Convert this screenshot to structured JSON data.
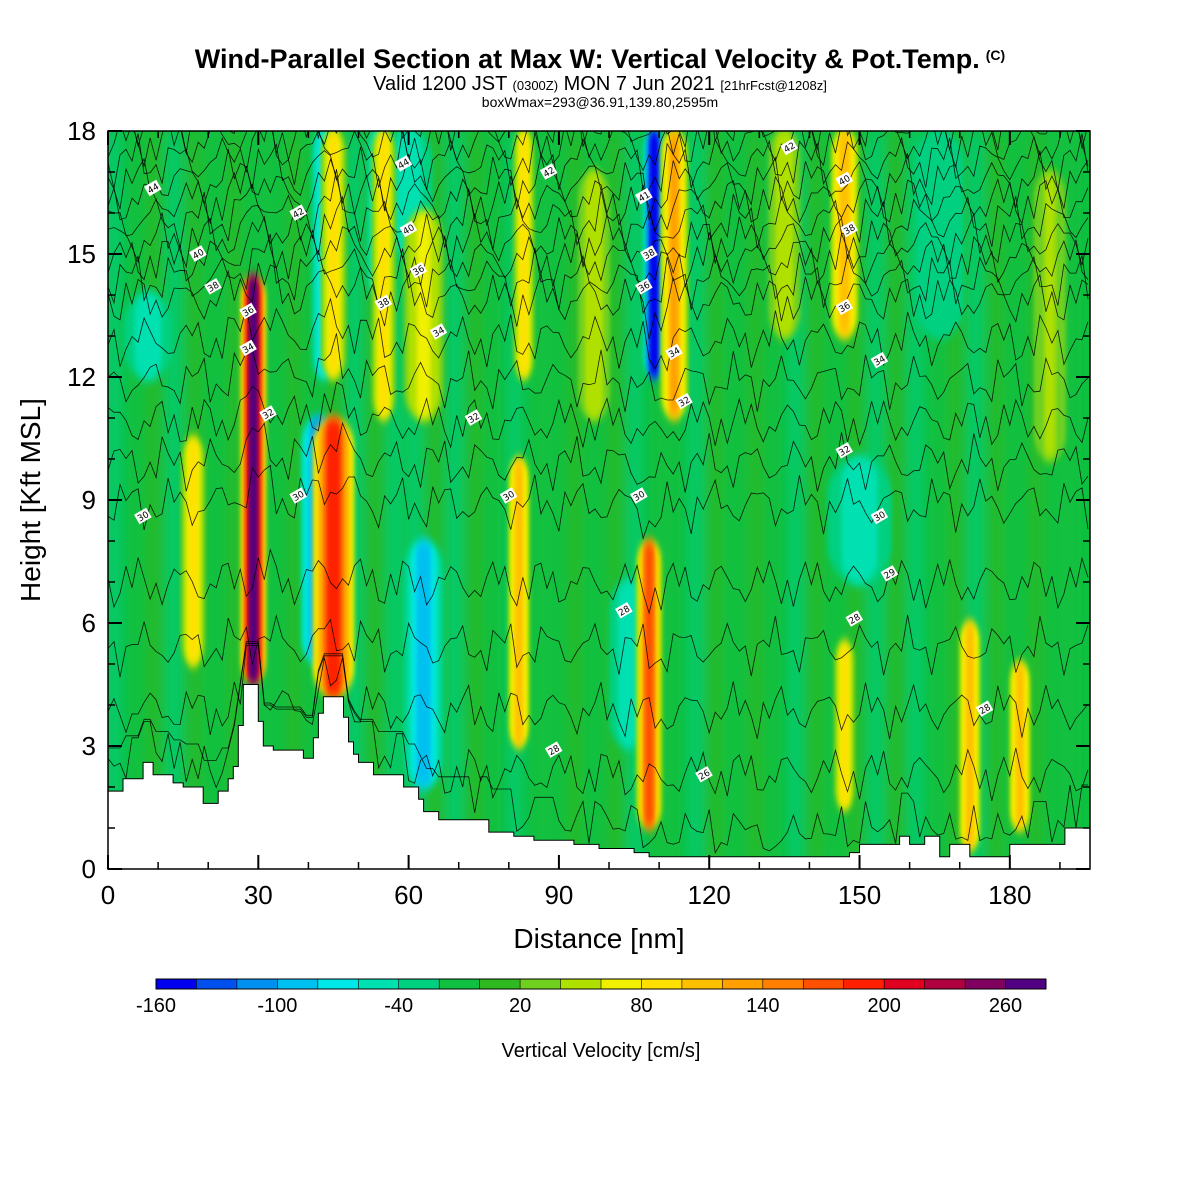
{
  "title": {
    "main": "Wind-Parallel Section at Max W: Vertical Velocity & Pot.Temp.",
    "copyright": "(C)",
    "valid_prefix": "Valid 1200 JST",
    "valid_utc": "(0300Z)",
    "valid_date": "MON 7 Jun 2021",
    "forecast": "[21hrFcst@1208z]",
    "box_info": "boxWmax=293@36.91,139.80,2595m"
  },
  "chart_data": {
    "type": "heatmap",
    "xlabel": "Distance [nm]",
    "ylabel": "Height [Kft MSL]",
    "xlim": [
      0,
      196
    ],
    "ylim": [
      0,
      18
    ],
    "x_ticks": [
      0,
      30,
      60,
      90,
      120,
      150,
      180
    ],
    "y_ticks": [
      0,
      3,
      6,
      9,
      12,
      15,
      18
    ],
    "colorbar": {
      "label": "Vertical Velocity [cm/s]",
      "min": -160,
      "max": 300,
      "step": 20,
      "tick_labels": [
        -160,
        -100,
        -40,
        20,
        80,
        140,
        200,
        260
      ],
      "colors": [
        "#0000ee",
        "#0050f0",
        "#0090f0",
        "#00c0f0",
        "#00e8e8",
        "#00e0b0",
        "#00d080",
        "#10c040",
        "#30b820",
        "#70d020",
        "#b0e000",
        "#f0f000",
        "#ffe000",
        "#ffc000",
        "#ffa000",
        "#ff8000",
        "#ff5000",
        "#ff2000",
        "#e00020",
        "#b00040",
        "#800060",
        "#500080"
      ]
    },
    "updrafts": [
      {
        "x": 17,
        "w": 1.5,
        "zmin": 5,
        "zmax": 10.5,
        "value": 90
      },
      {
        "x": 29,
        "w": 1.6,
        "zmin": 4.5,
        "zmax": 14.5,
        "value": 260
      },
      {
        "x": 45,
        "w": 2.6,
        "zmin": 4.2,
        "zmax": 11,
        "value": 180
      },
      {
        "x": 45,
        "w": 1.6,
        "zmin": 12,
        "zmax": 18,
        "value": 90
      },
      {
        "x": 55,
        "w": 1.5,
        "zmin": 11,
        "zmax": 18,
        "value": 80
      },
      {
        "x": 82,
        "w": 1.3,
        "zmin": 3,
        "zmax": 10,
        "value": 110
      },
      {
        "x": 83,
        "w": 1.3,
        "zmin": 12,
        "zmax": 18,
        "value": 90
      },
      {
        "x": 108,
        "w": 1.6,
        "zmin": 1,
        "zmax": 8,
        "value": 170
      },
      {
        "x": 113,
        "w": 1.7,
        "zmin": 11,
        "zmax": 18,
        "value": 120
      },
      {
        "x": 147,
        "w": 1.7,
        "zmin": 13,
        "zmax": 18,
        "value": 100
      },
      {
        "x": 147,
        "w": 1.3,
        "zmin": 1.5,
        "zmax": 5.5,
        "value": 80
      },
      {
        "x": 172,
        "w": 1.3,
        "zmin": 0.5,
        "zmax": 6,
        "value": 110
      },
      {
        "x": 182,
        "w": 1.3,
        "zmin": 1,
        "zmax": 5,
        "value": 100
      },
      {
        "x": 63,
        "w": 2.5,
        "zmin": 11,
        "zmax": 16,
        "value": 60
      },
      {
        "x": 97,
        "w": 2,
        "zmin": 11,
        "zmax": 17,
        "value": 50
      },
      {
        "x": 135,
        "w": 2,
        "zmin": 13,
        "zmax": 18,
        "value": 50
      },
      {
        "x": 188,
        "w": 2,
        "zmin": 10,
        "zmax": 17,
        "value": 40
      }
    ],
    "downdrafts": [
      {
        "x": 42,
        "w": 2.2,
        "zmin": 5,
        "zmax": 11,
        "value": -110
      },
      {
        "x": 43,
        "w": 1.5,
        "zmin": 12,
        "zmax": 18,
        "value": -80
      },
      {
        "x": 63,
        "w": 2.6,
        "zmin": 2,
        "zmax": 8,
        "value": -90
      },
      {
        "x": 54,
        "w": 1.5,
        "zmin": 14,
        "zmax": 18,
        "value": -70
      },
      {
        "x": 109,
        "w": 1.4,
        "zmin": 12,
        "zmax": 18,
        "value": -160
      },
      {
        "x": 104,
        "w": 2.5,
        "zmin": 3,
        "zmax": 7,
        "value": -60
      },
      {
        "x": 150,
        "w": 4,
        "zmin": 7,
        "zmax": 10,
        "value": -60
      },
      {
        "x": 60,
        "w": 3,
        "zmin": 15,
        "zmax": 18,
        "value": -60
      },
      {
        "x": 8,
        "w": 3,
        "zmin": 12,
        "zmax": 14,
        "value": -50
      },
      {
        "x": 166,
        "w": 3,
        "zmin": 13,
        "zmax": 18,
        "value": -40
      }
    ],
    "terrain": [
      [
        0,
        1.9
      ],
      [
        3,
        1.9
      ],
      [
        3,
        2.2
      ],
      [
        7,
        2.2
      ],
      [
        7,
        2.6
      ],
      [
        9,
        2.6
      ],
      [
        9,
        2.3
      ],
      [
        13,
        2.3
      ],
      [
        13,
        2.1
      ],
      [
        15,
        2.1
      ],
      [
        15,
        2.0
      ],
      [
        19,
        2.0
      ],
      [
        19,
        1.6
      ],
      [
        22,
        1.6
      ],
      [
        22,
        1.9
      ],
      [
        24,
        1.9
      ],
      [
        24,
        2.2
      ],
      [
        25,
        2.2
      ],
      [
        25,
        2.5
      ],
      [
        26,
        2.5
      ],
      [
        26,
        3.5
      ],
      [
        27,
        3.5
      ],
      [
        27,
        4.5
      ],
      [
        30,
        4.5
      ],
      [
        30,
        3.6
      ],
      [
        31,
        3.6
      ],
      [
        31,
        3.0
      ],
      [
        33,
        3.0
      ],
      [
        33,
        2.9
      ],
      [
        39,
        2.9
      ],
      [
        39,
        2.7
      ],
      [
        41,
        2.7
      ],
      [
        41,
        3.2
      ],
      [
        42,
        3.2
      ],
      [
        42,
        3.8
      ],
      [
        43,
        3.8
      ],
      [
        43,
        4.2
      ],
      [
        47,
        4.2
      ],
      [
        47,
        3.7
      ],
      [
        48,
        3.7
      ],
      [
        48,
        3.1
      ],
      [
        49,
        3.1
      ],
      [
        49,
        2.8
      ],
      [
        50,
        2.8
      ],
      [
        50,
        2.6
      ],
      [
        53,
        2.6
      ],
      [
        53,
        2.3
      ],
      [
        59,
        2.3
      ],
      [
        59,
        2.0
      ],
      [
        62,
        2.0
      ],
      [
        62,
        1.7
      ],
      [
        63,
        1.7
      ],
      [
        63,
        1.4
      ],
      [
        66,
        1.4
      ],
      [
        66,
        1.2
      ],
      [
        76,
        1.2
      ],
      [
        76,
        0.9
      ],
      [
        81,
        0.9
      ],
      [
        81,
        0.8
      ],
      [
        85,
        0.8
      ],
      [
        85,
        0.7
      ],
      [
        93,
        0.7
      ],
      [
        93,
        0.6
      ],
      [
        98,
        0.6
      ],
      [
        98,
        0.5
      ],
      [
        105,
        0.5
      ],
      [
        105,
        0.4
      ],
      [
        108,
        0.4
      ],
      [
        108,
        0.3
      ],
      [
        148,
        0.3
      ],
      [
        148,
        0.4
      ],
      [
        150,
        0.4
      ],
      [
        150,
        0.6
      ],
      [
        158,
        0.6
      ],
      [
        158,
        0.8
      ],
      [
        160,
        0.8
      ],
      [
        160,
        0.6
      ],
      [
        163,
        0.6
      ],
      [
        163,
        0.8
      ],
      [
        166,
        0.8
      ],
      [
        166,
        0.3
      ],
      [
        168,
        0.3
      ],
      [
        168,
        0.6
      ],
      [
        172,
        0.6
      ],
      [
        172,
        0.3
      ],
      [
        180,
        0.3
      ],
      [
        180,
        0.6
      ],
      [
        191,
        0.6
      ],
      [
        191,
        1.0
      ],
      [
        196,
        1.0
      ],
      [
        196,
        0.6
      ]
    ],
    "contour_levels": [
      26,
      27,
      28,
      29,
      30,
      31,
      32,
      33,
      34,
      35,
      36,
      37,
      38,
      39,
      40,
      41,
      42,
      43,
      44,
      45,
      46
    ],
    "contour_labels": [
      {
        "x": 7,
        "z": 8.6,
        "text": "30"
      },
      {
        "x": 9,
        "z": 16.6,
        "text": "44"
      },
      {
        "x": 18,
        "z": 15.0,
        "text": "40"
      },
      {
        "x": 21,
        "z": 14.2,
        "text": "38"
      },
      {
        "x": 28,
        "z": 13.6,
        "text": "36"
      },
      {
        "x": 28,
        "z": 12.7,
        "text": "34"
      },
      {
        "x": 32,
        "z": 11.1,
        "text": "32"
      },
      {
        "x": 38,
        "z": 9.1,
        "text": "30"
      },
      {
        "x": 38,
        "z": 16.0,
        "text": "42"
      },
      {
        "x": 55,
        "z": 13.8,
        "text": "38"
      },
      {
        "x": 59,
        "z": 17.2,
        "text": "44"
      },
      {
        "x": 60,
        "z": 15.6,
        "text": "40"
      },
      {
        "x": 62,
        "z": 14.6,
        "text": "36"
      },
      {
        "x": 66,
        "z": 13.1,
        "text": "34"
      },
      {
        "x": 73,
        "z": 11.0,
        "text": "32"
      },
      {
        "x": 80,
        "z": 9.1,
        "text": "30"
      },
      {
        "x": 88,
        "z": 17.0,
        "text": "42"
      },
      {
        "x": 89,
        "z": 2.9,
        "text": "28"
      },
      {
        "x": 103,
        "z": 6.3,
        "text": "28"
      },
      {
        "x": 106,
        "z": 9.1,
        "text": "30"
      },
      {
        "x": 107,
        "z": 16.4,
        "text": "41"
      },
      {
        "x": 108,
        "z": 15.0,
        "text": "38"
      },
      {
        "x": 107,
        "z": 14.2,
        "text": "36"
      },
      {
        "x": 113,
        "z": 12.6,
        "text": "34"
      },
      {
        "x": 115,
        "z": 11.4,
        "text": "32"
      },
      {
        "x": 119,
        "z": 2.3,
        "text": "26"
      },
      {
        "x": 136,
        "z": 17.6,
        "text": "42"
      },
      {
        "x": 147,
        "z": 16.8,
        "text": "40"
      },
      {
        "x": 148,
        "z": 15.6,
        "text": "38"
      },
      {
        "x": 147,
        "z": 13.7,
        "text": "36"
      },
      {
        "x": 154,
        "z": 12.4,
        "text": "34"
      },
      {
        "x": 147,
        "z": 10.2,
        "text": "32"
      },
      {
        "x": 154,
        "z": 8.6,
        "text": "30"
      },
      {
        "x": 156,
        "z": 7.2,
        "text": "29"
      },
      {
        "x": 149,
        "z": 6.1,
        "text": "28"
      },
      {
        "x": 175,
        "z": 3.9,
        "text": "28"
      }
    ]
  }
}
